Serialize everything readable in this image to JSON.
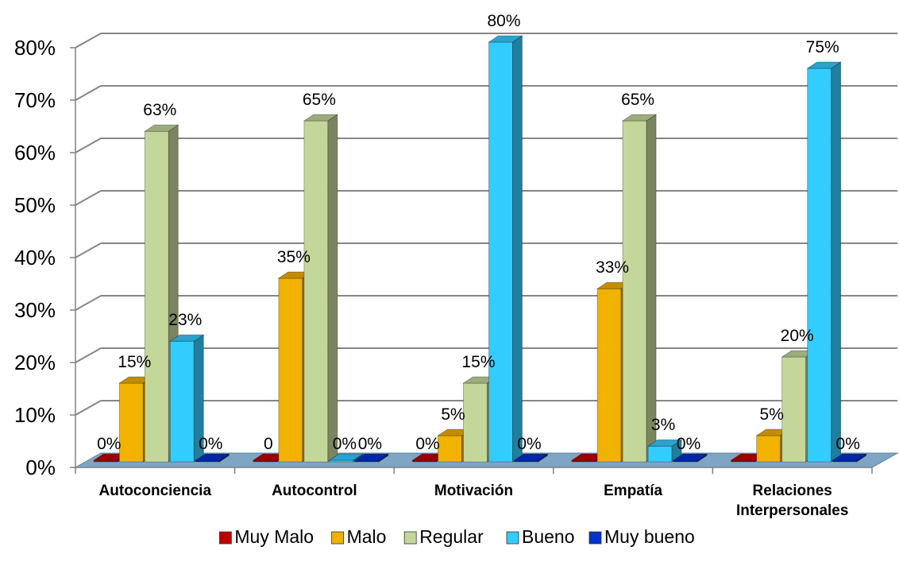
{
  "chart_data": {
    "type": "bar",
    "title": "",
    "xlabel": "",
    "ylabel": "",
    "ylim": [
      0,
      80
    ],
    "y_ticks": [
      "0%",
      "10%",
      "20%",
      "30%",
      "40%",
      "50%",
      "60%",
      "70%",
      "80%"
    ],
    "grid": true,
    "three_d": true,
    "legend_position": "bottom",
    "categories": [
      [
        "Autoconciencia"
      ],
      [
        "Autocontrol"
      ],
      [
        "Motivación"
      ],
      [
        "Empatía"
      ],
      [
        "Relaciones",
        "Interpersonales"
      ]
    ],
    "series": [
      {
        "name": "Muy Malo",
        "color": "#C00000",
        "values": [
          0,
          0,
          0,
          0,
          0
        ],
        "labels": [
          "0%",
          "0",
          "0%",
          "",
          ""
        ]
      },
      {
        "name": "Malo",
        "color": "#F2B200",
        "values": [
          15,
          35,
          5,
          33,
          5
        ],
        "labels": [
          "15%",
          "35%",
          "5%",
          "33%",
          "5%"
        ]
      },
      {
        "name": "Regular",
        "color": "#C4D79B",
        "values": [
          63,
          65,
          15,
          65,
          20
        ],
        "labels": [
          "63%",
          "65%",
          "15%",
          "65%",
          "20%"
        ]
      },
      {
        "name": "Bueno",
        "color": "#33CCFF",
        "values": [
          23,
          0,
          80,
          3,
          75
        ],
        "labels": [
          "23%",
          "0%",
          "80%",
          "3%",
          "75%"
        ]
      },
      {
        "name": "Muy bueno",
        "color": "#0033CC",
        "values": [
          0,
          0,
          0,
          0,
          0
        ],
        "labels": [
          "0%",
          "0%",
          "0%",
          "0%",
          "0%"
        ]
      }
    ]
  }
}
